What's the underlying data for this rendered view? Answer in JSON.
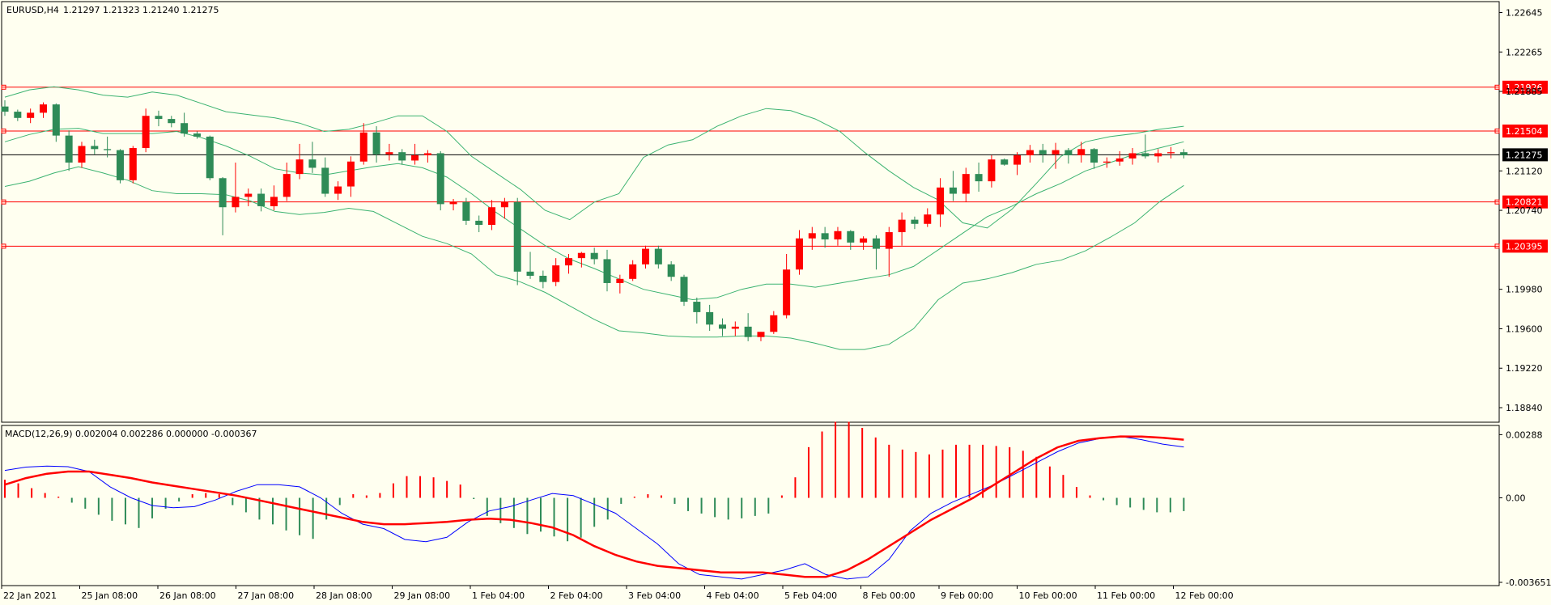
{
  "header": {
    "symbol": "EURUSD,H4",
    "ohlc": "1.21297 1.21323 1.21240 1.21275"
  },
  "macd_header": "MACD(12,26,9) 0.002004 0.002286 0.000000 -0.000367",
  "colors": {
    "background": "#fffff0",
    "bull": "#2e8b57",
    "bear": "#ff0000",
    "bands": "#3cb371",
    "level_line": "#ff0000",
    "current_line": "#000000",
    "macd_line": "#0000ff",
    "signal_line": "#ff0000"
  },
  "chart_data": [
    {
      "type": "candlestick",
      "title": "EURUSD,H4",
      "y_ticks": [
        "1.22645",
        "1.22265",
        "1.21885",
        "1.21120",
        "1.20740",
        "1.19980",
        "1.19600",
        "1.19220",
        "1.18840"
      ],
      "x_ticks": [
        "22 Jan 2021",
        "25 Jan 08:00",
        "26 Jan 08:00",
        "27 Jan 08:00",
        "28 Jan 08:00",
        "29 Jan 08:00",
        "1 Feb 04:00",
        "2 Feb 04:00",
        "3 Feb 04:00",
        "4 Feb 04:00",
        "5 Feb 04:00",
        "8 Feb 00:00",
        "9 Feb 00:00",
        "10 Feb 00:00",
        "11 Feb 00:00",
        "12 Feb 00:00"
      ],
      "ylim": [
        1.187,
        1.2275
      ],
      "levels": [
        {
          "label": "1.21926",
          "value": 1.21926
        },
        {
          "label": "1.21504",
          "value": 1.21504
        },
        {
          "label": "1.20821",
          "value": 1.20821
        },
        {
          "label": "1.20395",
          "value": 1.20395
        }
      ],
      "current_price": {
        "label": "1.21275",
        "value": 1.21275
      },
      "candles": [
        [
          1.2174,
          1.218,
          1.2165,
          1.2169
        ],
        [
          1.2169,
          1.2171,
          1.216,
          1.2163
        ],
        [
          1.2163,
          1.2172,
          1.2158,
          1.2168
        ],
        [
          1.2168,
          1.2178,
          1.2163,
          1.2176
        ],
        [
          1.2176,
          1.2177,
          1.214,
          1.2146
        ],
        [
          1.2146,
          1.2151,
          1.2112,
          1.212
        ],
        [
          1.212,
          1.214,
          1.2115,
          1.2136
        ],
        [
          1.2136,
          1.2142,
          1.2128,
          1.2133
        ],
        [
          1.2133,
          1.2145,
          1.2125,
          1.2132
        ],
        [
          1.2132,
          1.2133,
          1.21,
          1.2103
        ],
        [
          1.2103,
          1.2136,
          1.21,
          1.2134
        ],
        [
          1.2134,
          1.2172,
          1.213,
          1.2165
        ],
        [
          1.2165,
          1.217,
          1.2155,
          1.2162
        ],
        [
          1.2162,
          1.2165,
          1.2154,
          1.2158
        ],
        [
          1.2158,
          1.2168,
          1.2145,
          1.2148
        ],
        [
          1.2148,
          1.215,
          1.2143,
          1.2145
        ],
        [
          1.2145,
          1.2146,
          1.2103,
          1.2105
        ],
        [
          1.2105,
          1.2106,
          1.205,
          1.2077
        ],
        [
          1.2077,
          1.212,
          1.2072,
          1.2087
        ],
        [
          1.2087,
          1.2095,
          1.2078,
          1.209
        ],
        [
          1.209,
          1.2095,
          1.2073,
          1.2078
        ],
        [
          1.2078,
          1.2098,
          1.2074,
          1.2087
        ],
        [
          1.2087,
          1.212,
          1.2083,
          1.2109
        ],
        [
          1.2109,
          1.2138,
          1.2104,
          1.2123
        ],
        [
          1.2123,
          1.214,
          1.211,
          1.2115
        ],
        [
          1.2115,
          1.2125,
          1.2087,
          1.209
        ],
        [
          1.209,
          1.2102,
          1.2084,
          1.2097
        ],
        [
          1.2097,
          1.2126,
          1.2087,
          1.2121
        ],
        [
          1.2121,
          1.2158,
          1.2118,
          1.2149
        ],
        [
          1.2149,
          1.2155,
          1.212,
          1.2128
        ],
        [
          1.2128,
          1.2138,
          1.2122,
          1.213
        ],
        [
          1.213,
          1.2133,
          1.2118,
          1.2122
        ],
        [
          1.2122,
          1.2138,
          1.2118,
          1.2127
        ],
        [
          1.2127,
          1.2132,
          1.212,
          1.2129
        ],
        [
          1.2129,
          1.2131,
          1.2074,
          1.208
        ],
        [
          1.208,
          1.2085,
          1.2074,
          1.2082
        ],
        [
          1.2082,
          1.2086,
          1.206,
          1.2064
        ],
        [
          1.2064,
          1.2069,
          1.2053,
          1.206
        ],
        [
          1.206,
          1.2084,
          1.2055,
          1.2077
        ],
        [
          1.2077,
          1.2086,
          1.2066,
          1.2082
        ],
        [
          1.2082,
          1.2086,
          1.2002,
          1.2015
        ],
        [
          1.2015,
          1.2034,
          1.2008,
          1.2011
        ],
        [
          1.2011,
          1.2016,
          1.1999,
          1.2005
        ],
        [
          1.2005,
          1.2028,
          1.2001,
          1.2021
        ],
        [
          1.2021,
          1.2032,
          1.2013,
          1.2028
        ],
        [
          1.2028,
          1.2034,
          1.2019,
          1.2033
        ],
        [
          1.2033,
          1.2038,
          1.2022,
          1.2027
        ],
        [
          1.2027,
          1.2036,
          1.1996,
          1.2004
        ],
        [
          1.2004,
          1.2012,
          1.1994,
          1.2008
        ],
        [
          1.2008,
          1.2026,
          1.2006,
          1.2022
        ],
        [
          1.2022,
          1.204,
          1.2018,
          1.2037
        ],
        [
          1.2037,
          1.204,
          1.2018,
          1.2022
        ],
        [
          1.2022,
          1.2025,
          1.2006,
          1.201
        ],
        [
          1.201,
          1.2012,
          1.1982,
          1.1986
        ],
        [
          1.1986,
          1.199,
          1.1965,
          1.1976
        ],
        [
          1.1976,
          1.1983,
          1.1958,
          1.1964
        ],
        [
          1.1964,
          1.197,
          1.1953,
          1.196
        ],
        [
          1.196,
          1.1967,
          1.1953,
          1.1962
        ],
        [
          1.1962,
          1.1975,
          1.1948,
          1.1952
        ],
        [
          1.1952,
          1.1957,
          1.1948,
          1.1957
        ],
        [
          1.1957,
          1.1977,
          1.1955,
          1.1973
        ],
        [
          1.1973,
          1.2032,
          1.197,
          1.2017
        ],
        [
          1.2017,
          1.2055,
          1.2012,
          1.2047
        ],
        [
          1.2047,
          1.2058,
          1.2036,
          1.2052
        ],
        [
          1.2052,
          1.2058,
          1.2038,
          1.2046
        ],
        [
          1.2046,
          1.2058,
          1.204,
          1.2054
        ],
        [
          1.2054,
          1.2055,
          1.2036,
          1.2043
        ],
        [
          1.2043,
          1.2049,
          1.2036,
          1.2047
        ],
        [
          1.2047,
          1.205,
          1.2017,
          1.2037
        ],
        [
          1.2037,
          1.2058,
          1.201,
          1.2053
        ],
        [
          1.2053,
          1.2072,
          1.204,
          1.2065
        ],
        [
          1.2065,
          1.2068,
          1.2056,
          1.2061
        ],
        [
          1.2061,
          1.2076,
          1.2058,
          1.207
        ],
        [
          1.207,
          1.2105,
          1.2058,
          1.2096
        ],
        [
          1.2096,
          1.2112,
          1.2083,
          1.209
        ],
        [
          1.209,
          1.2115,
          1.2082,
          1.2109
        ],
        [
          1.2109,
          1.212,
          1.2092,
          1.2102
        ],
        [
          1.2102,
          1.2127,
          1.2096,
          1.2123
        ],
        [
          1.2123,
          1.2124,
          1.2117,
          1.2118
        ],
        [
          1.2118,
          1.213,
          1.2108,
          1.2127
        ],
        [
          1.2127,
          1.2137,
          1.212,
          1.2132
        ],
        [
          1.2132,
          1.2138,
          1.212,
          1.2128
        ],
        [
          1.2128,
          1.2139,
          1.2114,
          1.2132
        ],
        [
          1.2132,
          1.2134,
          1.2119,
          1.2127
        ],
        [
          1.2127,
          1.214,
          1.212,
          1.2133
        ],
        [
          1.2133,
          1.2134,
          1.2114,
          1.212
        ],
        [
          1.212,
          1.2125,
          1.2115,
          1.2121
        ],
        [
          1.2121,
          1.2131,
          1.2117,
          1.2124
        ],
        [
          1.2124,
          1.2134,
          1.2118,
          1.2129
        ],
        [
          1.2129,
          1.2147,
          1.2124,
          1.2126
        ],
        [
          1.2126,
          1.2133,
          1.212,
          1.2129
        ],
        [
          1.2129,
          1.2135,
          1.2124,
          1.213
        ],
        [
          1.213,
          1.2133,
          1.2124,
          1.2127
        ]
      ],
      "bollinger": {
        "upper": [
          1.2183,
          1.219,
          1.2193,
          1.219,
          1.2185,
          1.2183,
          1.2188,
          1.2185,
          1.2177,
          1.2169,
          1.2166,
          1.2163,
          1.2158,
          1.215,
          1.2152,
          1.2158,
          1.2165,
          1.2165,
          1.215,
          1.2126,
          1.211,
          1.2094,
          1.2074,
          1.2065,
          1.2082,
          1.209,
          1.2125,
          1.2137,
          1.2142,
          1.2155,
          1.2165,
          1.2172,
          1.217,
          1.2162,
          1.215,
          1.213,
          1.2112,
          1.2096,
          1.2084,
          1.2062,
          1.2057,
          1.2075,
          1.21,
          1.2126,
          1.214,
          1.2145,
          1.2148,
          1.2152,
          1.2155
        ],
        "middle": [
          1.214,
          1.2147,
          1.2152,
          1.2153,
          1.2148,
          1.2148,
          1.2148,
          1.215,
          1.2144,
          1.2136,
          1.2126,
          1.2114,
          1.211,
          1.2108,
          1.2112,
          1.2116,
          1.2119,
          1.2115,
          1.2106,
          1.209,
          1.2072,
          1.2056,
          1.204,
          1.2027,
          1.2018,
          1.2008,
          1.1998,
          1.1993,
          1.1988,
          1.199,
          1.1998,
          1.2003,
          1.2003,
          1.2,
          1.2004,
          1.2008,
          1.2012,
          1.202,
          1.2036,
          1.2052,
          1.2068,
          1.2078,
          1.209,
          1.21,
          1.2112,
          1.212,
          1.2128,
          1.2134,
          1.214
        ],
        "lower": [
          1.2097,
          1.2102,
          1.211,
          1.2116,
          1.211,
          1.2103,
          1.2093,
          1.209,
          1.209,
          1.2089,
          1.2083,
          1.2073,
          1.207,
          1.2072,
          1.2076,
          1.2073,
          1.2061,
          1.2049,
          1.2042,
          1.2032,
          1.2012,
          1.2005,
          1.1995,
          1.1982,
          1.1969,
          1.1958,
          1.1956,
          1.1953,
          1.1952,
          1.1952,
          1.1953,
          1.1953,
          1.1951,
          1.1946,
          1.194,
          1.194,
          1.1945,
          1.196,
          1.1988,
          1.2004,
          1.2008,
          1.2014,
          1.2022,
          1.2026,
          1.2035,
          1.2048,
          1.2062,
          1.2082,
          1.2098
        ]
      }
    },
    {
      "type": "macd",
      "title": "MACD(12,26,9)",
      "y_ticks": [
        "0.00288",
        "0.00",
        "-0.003651"
      ],
      "ylim": [
        -0.004,
        0.0033
      ],
      "histogram": [
        0.0015,
        0.0012,
        0.0008,
        0.0004,
        0.0001,
        -0.0004,
        -0.0009,
        -0.0014,
        -0.0019,
        -0.0022,
        -0.0025,
        -0.0017,
        -0.0009,
        -0.0003,
        0.0003,
        0.0004,
        0.0003,
        -0.0006,
        -0.0012,
        -0.0018,
        -0.0022,
        -0.0027,
        -0.0031,
        -0.0034,
        -0.0018,
        -0.0006,
        0.0003,
        0.0002,
        0.0004,
        0.0012,
        0.0018,
        0.0018,
        0.0017,
        0.0014,
        0.0011,
        -0.0001,
        -0.0015,
        -0.0021,
        -0.0025,
        -0.003,
        -0.0028,
        -0.0032,
        -0.0036,
        -0.0033,
        -0.0024,
        -0.0018,
        -0.0005,
        0.0001,
        0.0003,
        0.0002,
        -0.0005,
        -0.0011,
        -0.0013,
        -0.0016,
        -0.0018,
        -0.0017,
        -0.0015,
        -0.0013,
        0.0002,
        0.0017,
        0.0042,
        0.0055,
        0.0063,
        0.0063,
        0.0058,
        0.005,
        0.0044,
        0.004,
        0.0038,
        0.0036,
        0.004,
        0.0044,
        0.0044,
        0.0044,
        0.0043,
        0.0042,
        0.0039,
        0.0034,
        0.0026,
        0.0019,
        0.0009,
        0.0002,
        -0.0002,
        -0.0006,
        -0.0008,
        -0.001,
        -0.0012,
        -0.0012,
        -0.0011
      ],
      "macd_line": [
        0.00125,
        0.0014,
        0.00145,
        0.00142,
        0.0012,
        0.0005,
        0.0,
        -0.00035,
        -0.00045,
        -0.0004,
        -0.0001,
        0.0003,
        0.0006,
        0.0006,
        0.0005,
        0.0,
        -0.0007,
        -0.0012,
        -0.0014,
        -0.0019,
        -0.002,
        -0.0018,
        -0.0011,
        -0.0006,
        -0.0004,
        -0.0001,
        0.0002,
        0.0001,
        -0.0003,
        -0.0007,
        -0.0014,
        -0.0021,
        -0.003,
        -0.0035,
        -0.0036,
        -0.0037,
        -0.0035,
        -0.0033,
        -0.003,
        -0.0035,
        -0.0037,
        -0.0036,
        -0.0028,
        -0.0015,
        -0.0007,
        -0.0002,
        0.0002,
        0.0006,
        0.0011,
        0.0016,
        0.0021,
        0.0025,
        0.0027,
        0.0028,
        0.00265,
        0.00245,
        0.00232
      ],
      "signal_line": [
        0.0006,
        0.0009,
        0.0011,
        0.0012,
        0.0012,
        0.00105,
        0.0009,
        0.0007,
        0.00055,
        0.0004,
        0.00025,
        0.0001,
        -0.0001,
        -0.0003,
        -0.0005,
        -0.0007,
        -0.0009,
        -0.0011,
        -0.0012,
        -0.0012,
        -0.00115,
        -0.0011,
        -0.001,
        -0.00095,
        -0.001,
        -0.00115,
        -0.00135,
        -0.0017,
        -0.0022,
        -0.0026,
        -0.0029,
        -0.0031,
        -0.0032,
        -0.0033,
        -0.0034,
        -0.0034,
        -0.0034,
        -0.0035,
        -0.0036,
        -0.0036,
        -0.0033,
        -0.0028,
        -0.0022,
        -0.0016,
        -0.001,
        -0.0005,
        0.0,
        0.0006,
        0.0012,
        0.0018,
        0.0023,
        0.0026,
        0.00272,
        0.0028,
        0.00279,
        0.00274,
        0.00265
      ]
    }
  ]
}
